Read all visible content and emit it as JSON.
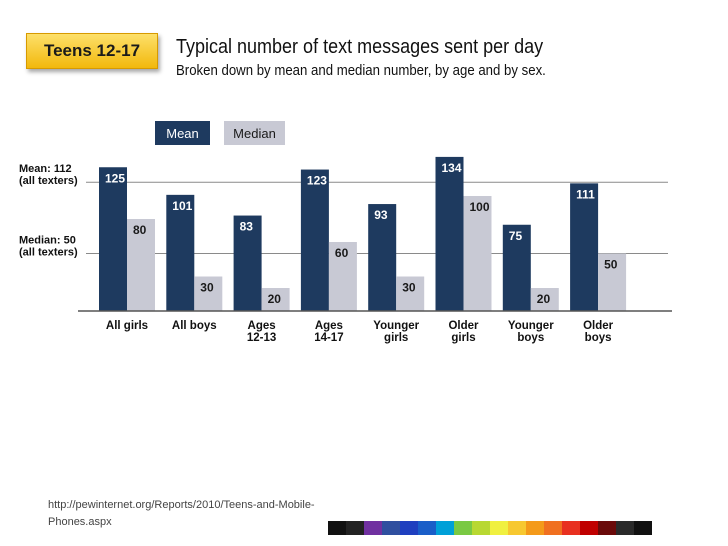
{
  "slide": {
    "badge": "Teens 12-17",
    "title": "Typical number of text messages sent per day",
    "subtitle": "Broken down by mean and median number, by age and by sex.",
    "source": "http://pewinternet.org/Reports/2010/Teens-and-Mobile-Phones.aspx"
  },
  "chart_data": {
    "type": "bar",
    "categories": [
      "All girls",
      "All boys",
      "Ages 12-13",
      "Ages 14-17",
      "Younger girls",
      "Older girls",
      "Younger boys",
      "Older boys"
    ],
    "series": [
      {
        "name": "Mean",
        "color": "#1e3a5f",
        "label_color": "#ffffff",
        "values": [
          125,
          101,
          83,
          123,
          93,
          134,
          75,
          111
        ]
      },
      {
        "name": "Median",
        "color": "#c8c9d4",
        "label_color": "#1a1a1a",
        "values": [
          80,
          30,
          20,
          60,
          30,
          100,
          20,
          50
        ]
      }
    ],
    "reference_lines": [
      {
        "label_line1": "Mean: 112",
        "label_line2": "(all texters)",
        "value": 112
      },
      {
        "label_line1": "Median: 50",
        "label_line2": "(all texters)",
        "value": 50
      }
    ],
    "legend_position": "top-left",
    "ylim": [
      0,
      140
    ],
    "grid": false
  },
  "color_strip": [
    "#111111",
    "#222222",
    "#7030a0",
    "#2f4f9f",
    "#1f3fbf",
    "#1a5ec8",
    "#00a0d8",
    "#7ac943",
    "#b8d832",
    "#f0f040",
    "#f7c830",
    "#f49a1a",
    "#f07020",
    "#e83020",
    "#c00000",
    "#6a0a0a",
    "#2a2a2a",
    "#111111"
  ]
}
